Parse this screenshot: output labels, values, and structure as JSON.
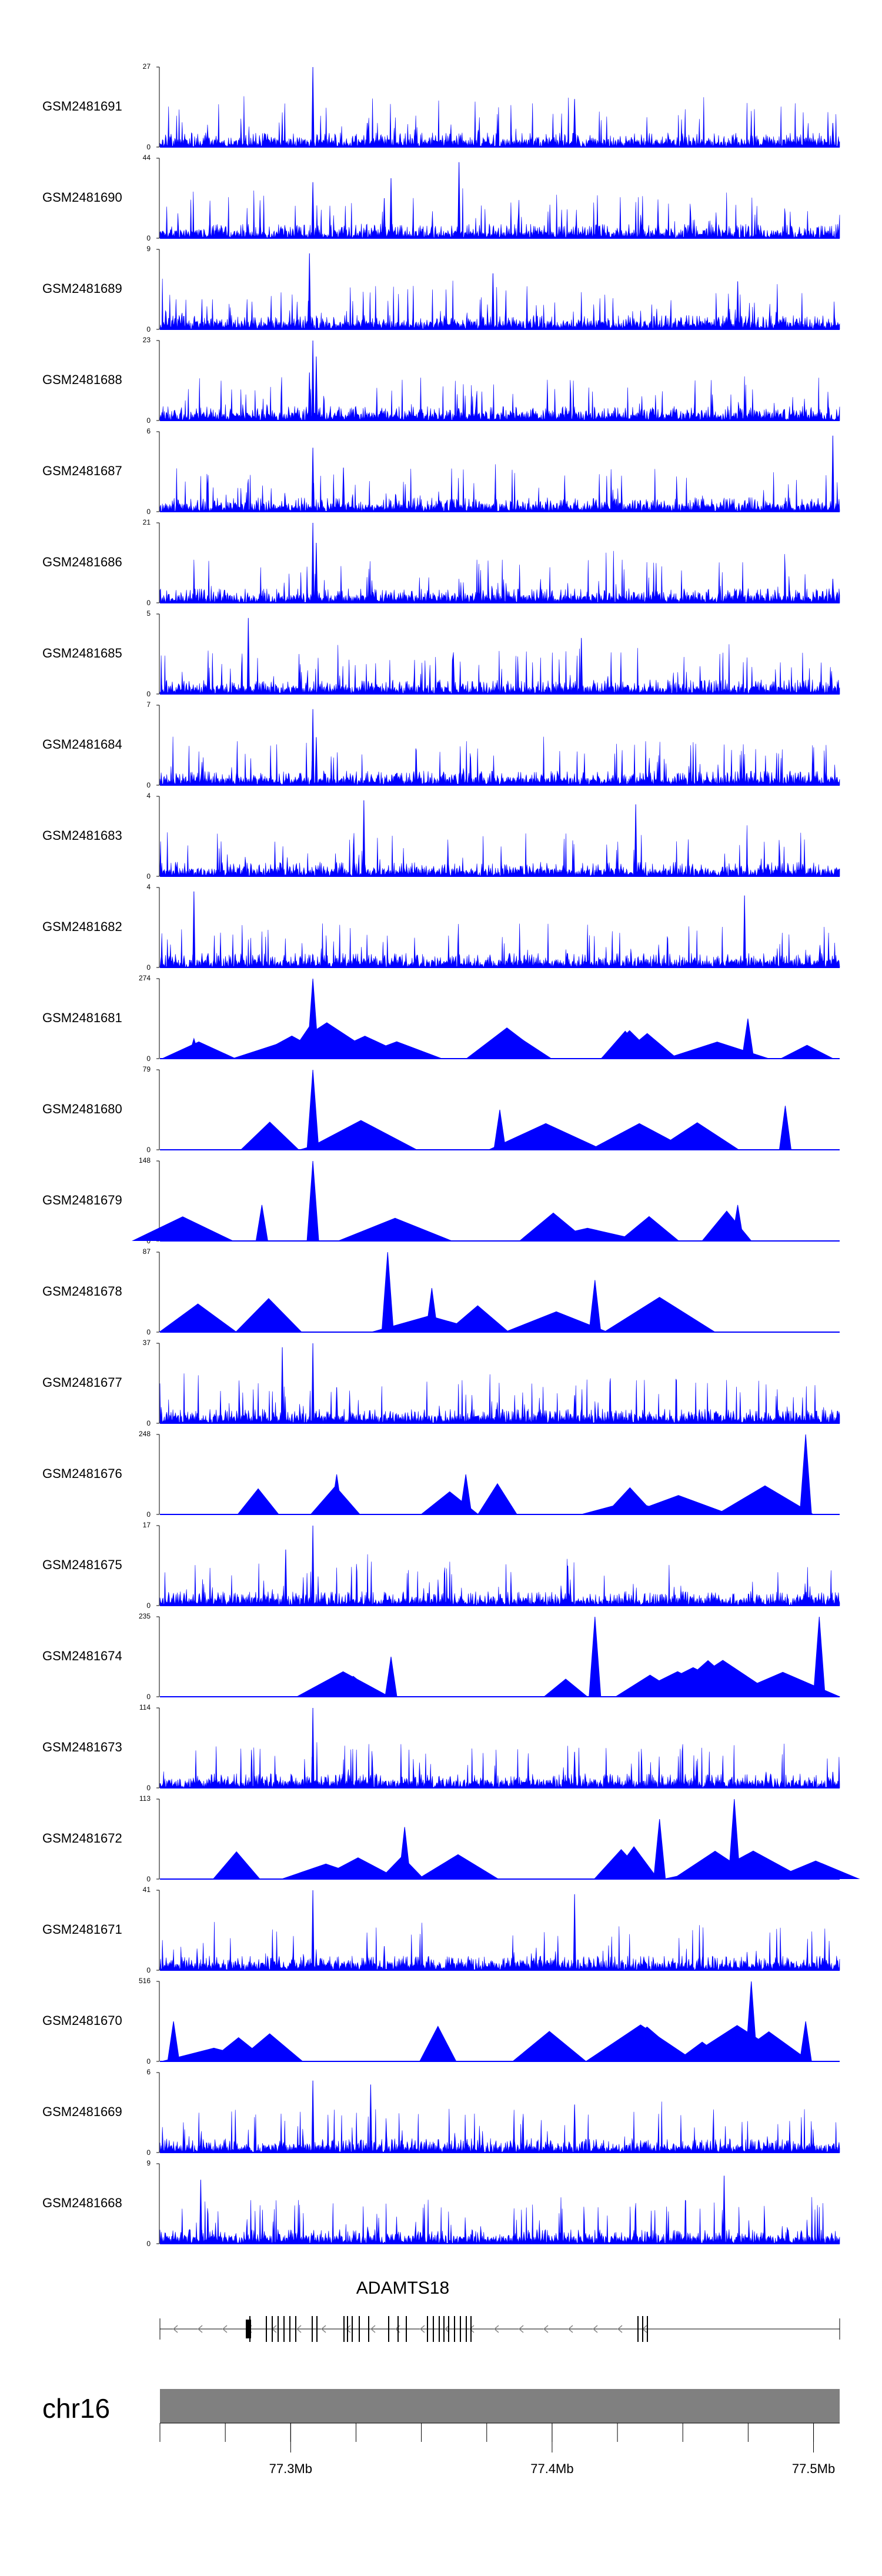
{
  "chart_data": {
    "type": "area",
    "chromosome": "chr16",
    "gene": "ADAMTS18",
    "x_range": [
      77.25,
      77.51
    ],
    "x_unit": "Mb",
    "x_ticks": [
      "77.3Mb",
      "77.4Mb",
      "77.5Mb"
    ],
    "color": "#0000ff",
    "gene_color": "#000000",
    "ideogram_color": "#808080",
    "tracks": [
      {
        "name": "GSM2481691",
        "ymin": "0",
        "ymax": "27",
        "style": "dense",
        "peaks": [
          {
            "x": 0.225,
            "h": 1.0
          },
          {
            "x": 0.61,
            "h": 0.6
          },
          {
            "x": 0.305,
            "h": 0.3
          },
          {
            "x": 0.99,
            "h": 0.3
          }
        ]
      },
      {
        "name": "GSM2481690",
        "ymin": "0",
        "ymax": "44",
        "style": "dense",
        "peaks": [
          {
            "x": 0.225,
            "h": 0.7
          },
          {
            "x": 0.34,
            "h": 0.75
          },
          {
            "x": 0.44,
            "h": 0.95
          },
          {
            "x": 0.33,
            "h": 0.5
          }
        ]
      },
      {
        "name": "GSM2481689",
        "ymin": "0",
        "ymax": "9",
        "style": "dense",
        "peaks": [
          {
            "x": 0.22,
            "h": 0.95
          },
          {
            "x": 0.49,
            "h": 0.7
          },
          {
            "x": 0.85,
            "h": 0.6
          }
        ]
      },
      {
        "name": "GSM2481688",
        "ymin": "0",
        "ymax": "23",
        "style": "dense",
        "peaks": [
          {
            "x": 0.225,
            "h": 1.0
          },
          {
            "x": 0.23,
            "h": 0.8
          },
          {
            "x": 0.22,
            "h": 0.6
          }
        ]
      },
      {
        "name": "GSM2481687",
        "ymin": "0",
        "ymax": "6",
        "style": "dense",
        "peaks": [
          {
            "x": 0.225,
            "h": 0.8
          },
          {
            "x": 0.99,
            "h": 0.95
          },
          {
            "x": 0.27,
            "h": 0.55
          }
        ]
      },
      {
        "name": "GSM2481686",
        "ymin": "0",
        "ymax": "21",
        "style": "dense",
        "peaks": [
          {
            "x": 0.225,
            "h": 1.0
          },
          {
            "x": 0.23,
            "h": 0.75
          },
          {
            "x": 0.99,
            "h": 0.3
          }
        ]
      },
      {
        "name": "GSM2481685",
        "ymin": "0",
        "ymax": "5",
        "style": "dense",
        "peaks": [
          {
            "x": 0.13,
            "h": 0.95
          },
          {
            "x": 0.62,
            "h": 0.7
          }
        ]
      },
      {
        "name": "GSM2481684",
        "ymin": "0",
        "ymax": "7",
        "style": "dense",
        "peaks": [
          {
            "x": 0.225,
            "h": 0.95
          },
          {
            "x": 0.23,
            "h": 0.6
          }
        ]
      },
      {
        "name": "GSM2481683",
        "ymin": "0",
        "ymax": "4",
        "style": "dense",
        "peaks": [
          {
            "x": 0.3,
            "h": 0.95
          },
          {
            "x": 0.7,
            "h": 0.9
          }
        ]
      },
      {
        "name": "GSM2481682",
        "ymin": "0",
        "ymax": "4",
        "style": "dense",
        "peaks": [
          {
            "x": 0.05,
            "h": 0.95
          },
          {
            "x": 0.86,
            "h": 0.9
          }
        ]
      },
      {
        "name": "GSM2481681",
        "ymin": "0",
        "ymax": "274",
        "style": "sparse",
        "peaks": [
          {
            "x": 0.225,
            "h": 1.0
          },
          {
            "x": 0.865,
            "h": 0.5
          },
          {
            "x": 0.05,
            "h": 0.25
          }
        ]
      },
      {
        "name": "GSM2481680",
        "ymin": "0",
        "ymax": "79",
        "style": "sparse",
        "peaks": [
          {
            "x": 0.225,
            "h": 1.0
          },
          {
            "x": 0.92,
            "h": 0.55
          },
          {
            "x": 0.5,
            "h": 0.5
          }
        ]
      },
      {
        "name": "GSM2481679",
        "ymin": "0",
        "ymax": "148",
        "style": "sparse",
        "peaks": [
          {
            "x": 0.225,
            "h": 1.0
          },
          {
            "x": 0.15,
            "h": 0.45
          },
          {
            "x": 0.85,
            "h": 0.45
          }
        ]
      },
      {
        "name": "GSM2481678",
        "ymin": "0",
        "ymax": "87",
        "style": "sparse",
        "peaks": [
          {
            "x": 0.335,
            "h": 1.0
          },
          {
            "x": 0.64,
            "h": 0.65
          },
          {
            "x": 0.4,
            "h": 0.55
          }
        ]
      },
      {
        "name": "GSM2481677",
        "ymin": "0",
        "ymax": "37",
        "style": "dense",
        "peaks": [
          {
            "x": 0.225,
            "h": 1.0
          },
          {
            "x": 0.18,
            "h": 0.95
          },
          {
            "x": 0.26,
            "h": 0.45
          },
          {
            "x": 0.61,
            "h": 0.35
          }
        ]
      },
      {
        "name": "GSM2481676",
        "ymin": "0",
        "ymax": "248",
        "style": "sparse",
        "peaks": [
          {
            "x": 0.95,
            "h": 1.0
          },
          {
            "x": 0.26,
            "h": 0.5
          },
          {
            "x": 0.45,
            "h": 0.5
          }
        ]
      },
      {
        "name": "GSM2481675",
        "ymin": "0",
        "ymax": "17",
        "style": "dense",
        "peaks": [
          {
            "x": 0.225,
            "h": 1.0
          },
          {
            "x": 0.185,
            "h": 0.7
          },
          {
            "x": 0.6,
            "h": 0.5
          }
        ]
      },
      {
        "name": "GSM2481674",
        "ymin": "0",
        "ymax": "235",
        "style": "sparse",
        "peaks": [
          {
            "x": 0.64,
            "h": 1.0
          },
          {
            "x": 0.97,
            "h": 1.0
          },
          {
            "x": 0.34,
            "h": 0.5
          }
        ]
      },
      {
        "name": "GSM2481673",
        "ymin": "0",
        "ymax": "114",
        "style": "dense",
        "peaks": [
          {
            "x": 0.225,
            "h": 1.0
          },
          {
            "x": 0.61,
            "h": 0.45
          },
          {
            "x": 0.99,
            "h": 0.2
          }
        ]
      },
      {
        "name": "GSM2481672",
        "ymin": "0",
        "ymax": "113",
        "style": "sparse",
        "peaks": [
          {
            "x": 0.845,
            "h": 1.0
          },
          {
            "x": 0.735,
            "h": 0.75
          },
          {
            "x": 0.36,
            "h": 0.65
          }
        ]
      },
      {
        "name": "GSM2481671",
        "ymin": "0",
        "ymax": "41",
        "style": "dense",
        "peaks": [
          {
            "x": 0.225,
            "h": 1.0
          },
          {
            "x": 0.61,
            "h": 0.95
          },
          {
            "x": 0.33,
            "h": 0.3
          }
        ]
      },
      {
        "name": "GSM2481670",
        "ymin": "0",
        "ymax": "516",
        "style": "sparse",
        "peaks": [
          {
            "x": 0.87,
            "h": 1.0
          },
          {
            "x": 0.02,
            "h": 0.5
          },
          {
            "x": 0.95,
            "h": 0.5
          }
        ]
      },
      {
        "name": "GSM2481669",
        "ymin": "0",
        "ymax": "6",
        "style": "dense",
        "peaks": [
          {
            "x": 0.225,
            "h": 0.9
          },
          {
            "x": 0.31,
            "h": 0.85
          },
          {
            "x": 0.61,
            "h": 0.6
          }
        ]
      },
      {
        "name": "GSM2481668",
        "ymin": "0",
        "ymax": "9",
        "style": "dense",
        "peaks": [
          {
            "x": 0.06,
            "h": 0.8
          },
          {
            "x": 0.83,
            "h": 0.85
          }
        ]
      }
    ]
  }
}
